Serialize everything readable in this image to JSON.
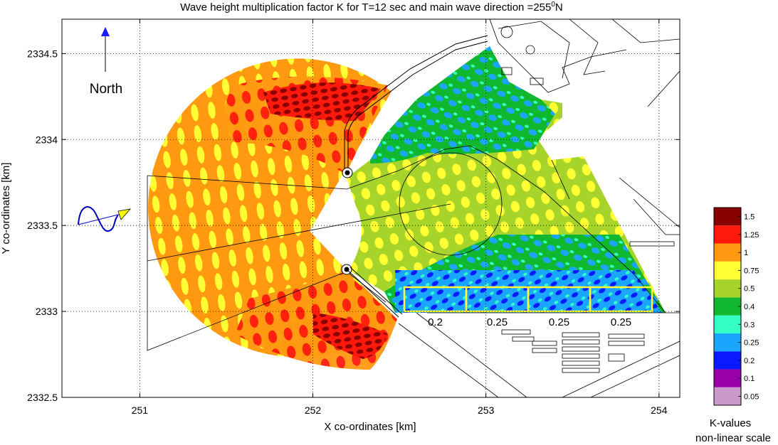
{
  "chart_data": {
    "type": "heatmap",
    "title": "Wave height multiplication factor K for T=12 sec and main wave direction =255",
    "title_superscript": "0",
    "title_suffix": "N",
    "xlabel": "X co-ordinates [km]",
    "ylabel": "Y co-ordinates [km]",
    "xlim": [
      250.55,
      254.12
    ],
    "ylim": [
      2332.5,
      2334.7
    ],
    "x_ticks": [
      251,
      252,
      253,
      254
    ],
    "y_ticks": [
      2332.5,
      2333,
      2333.5,
      2334,
      2334.5
    ],
    "x_tick_labels": [
      "251",
      "252",
      "253",
      "254"
    ],
    "y_tick_labels": [
      "2332.5",
      "2333",
      "2333.5",
      "2334",
      "2334.5"
    ],
    "grid": true,
    "north_label": "North",
    "wave_direction_deg": 255,
    "colorbar": {
      "title_line1": "K-values",
      "title_line2": "non-linear scale",
      "levels": [
        {
          "label": "0.05",
          "color": "#cc99cc"
        },
        {
          "label": "0.1",
          "color": "#9900aa"
        },
        {
          "label": "0.2",
          "color": "#0a1aff"
        },
        {
          "label": "0.25",
          "color": "#1aa6ff"
        },
        {
          "label": "0.3",
          "color": "#33ffc4"
        },
        {
          "label": "0.4",
          "color": "#10b830"
        },
        {
          "label": "0.5",
          "color": "#a6d42a"
        },
        {
          "label": "0.75",
          "color": "#ffff33"
        },
        {
          "label": "1",
          "color": "#ff9911"
        },
        {
          "label": "1.25",
          "color": "#ff1a0d"
        },
        {
          "label": "1.5",
          "color": "#880000"
        }
      ]
    },
    "zones": [
      {
        "label": "0.2"
      },
      {
        "label": "0.25"
      },
      {
        "label": "0.25"
      },
      {
        "label": "0.25"
      }
    ]
  }
}
